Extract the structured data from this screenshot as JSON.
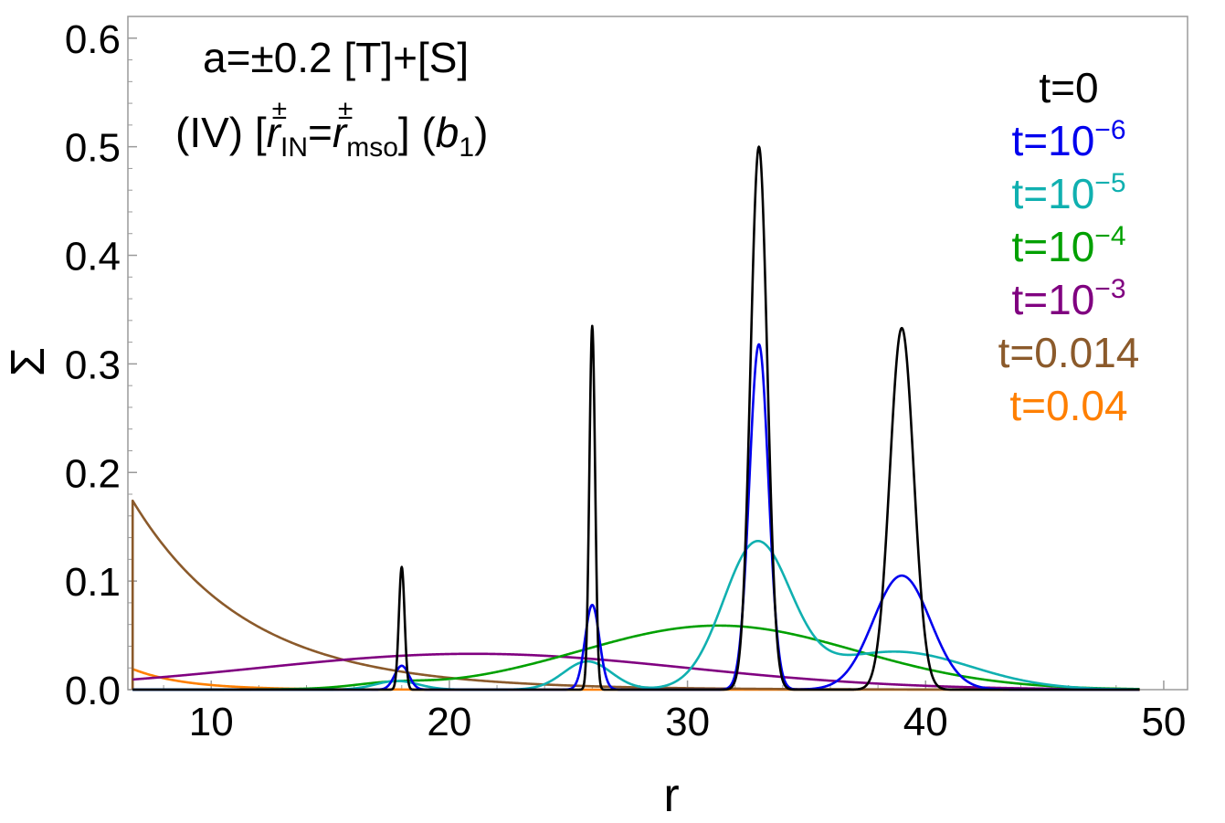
{
  "chart_data": {
    "type": "line",
    "xlabel": "r",
    "ylabel": "Σ",
    "xlim": [
      6.5,
      51
    ],
    "ylim": [
      0,
      0.62
    ],
    "xticks": [
      10,
      20,
      30,
      40,
      50
    ],
    "yticks": [
      0.0,
      0.1,
      0.2,
      0.3,
      0.4,
      0.5,
      0.6
    ],
    "xtick_labels": [
      "10",
      "20",
      "30",
      "40",
      "50"
    ],
    "ytick_labels": [
      "0.0",
      "0.1",
      "0.2",
      "0.3",
      "0.4",
      "0.5",
      "0.6"
    ],
    "annotation": {
      "line1": "a=±0.2 [T]+[S]",
      "line2_prefix": "(IV) [",
      "r_symbol": "r",
      "pm": "±",
      "sub_in": "IN",
      "equals": "=",
      "sub_mso": "mso",
      "bracket_close": "] (",
      "b_symbol": "b",
      "b_sub": "1",
      "paren_close": ")"
    },
    "legend_position": "top-right",
    "series": [
      {
        "name": "t=0",
        "label_base": "t=0",
        "label_exp": "",
        "color": "#000000",
        "peaks": [
          {
            "mu": 18.0,
            "h": 0.113,
            "sigma": 0.12
          },
          {
            "mu": 26.0,
            "h": 0.335,
            "sigma": 0.12
          },
          {
            "mu": 33.0,
            "h": 0.5,
            "sigma": 0.35
          },
          {
            "mu": 39.0,
            "h": 0.333,
            "sigma": 0.5
          }
        ]
      },
      {
        "name": "t=10^-6",
        "label_base": "t=10",
        "label_exp": "−6",
        "color": "#0000ee",
        "peaks": [
          {
            "mu": 18.0,
            "h": 0.022,
            "sigma": 0.3
          },
          {
            "mu": 26.0,
            "h": 0.078,
            "sigma": 0.3
          },
          {
            "mu": 33.0,
            "h": 0.318,
            "sigma": 0.4
          },
          {
            "mu": 39.0,
            "h": 0.105,
            "sigma": 1.2
          }
        ]
      },
      {
        "name": "t=10^-5",
        "label_base": "t=10",
        "label_exp": "−5",
        "color": "#10b0b0",
        "peaks": [
          {
            "mu": 17.8,
            "h": 0.008,
            "sigma": 0.9
          },
          {
            "mu": 25.8,
            "h": 0.026,
            "sigma": 1.0
          },
          {
            "mu": 32.9,
            "h": 0.13,
            "sigma": 1.4
          },
          {
            "mu": 38.7,
            "h": 0.035,
            "sigma": 3.2
          }
        ]
      },
      {
        "name": "t=10^-4",
        "label_base": "t=10",
        "label_exp": "−4",
        "color": "#00a000",
        "peaks": [
          {
            "mu": 17.5,
            "h": 0.004,
            "sigma": 1.5
          },
          {
            "mu": 31.3,
            "h": 0.059,
            "sigma": 5.8
          }
        ]
      },
      {
        "name": "t=10^-3",
        "label_base": "t=10",
        "label_exp": "−3",
        "color": "#800080",
        "peaks": [
          {
            "mu": 21.0,
            "h": 0.033,
            "sigma": 9.0
          }
        ]
      },
      {
        "name": "t=0.014",
        "label_base": "t=0.014",
        "label_exp": "",
        "color": "#8b5a2b",
        "decay": {
          "x0": 6.7,
          "h": 0.174,
          "tau": 4.8,
          "floor": 0.0
        }
      },
      {
        "name": "t=0.04",
        "label_base": "t=0.04",
        "label_exp": "",
        "color": "#ff7f00",
        "decay": {
          "x0": 6.7,
          "h": 0.019,
          "tau": 2.2,
          "floor": 0.0
        }
      }
    ]
  }
}
